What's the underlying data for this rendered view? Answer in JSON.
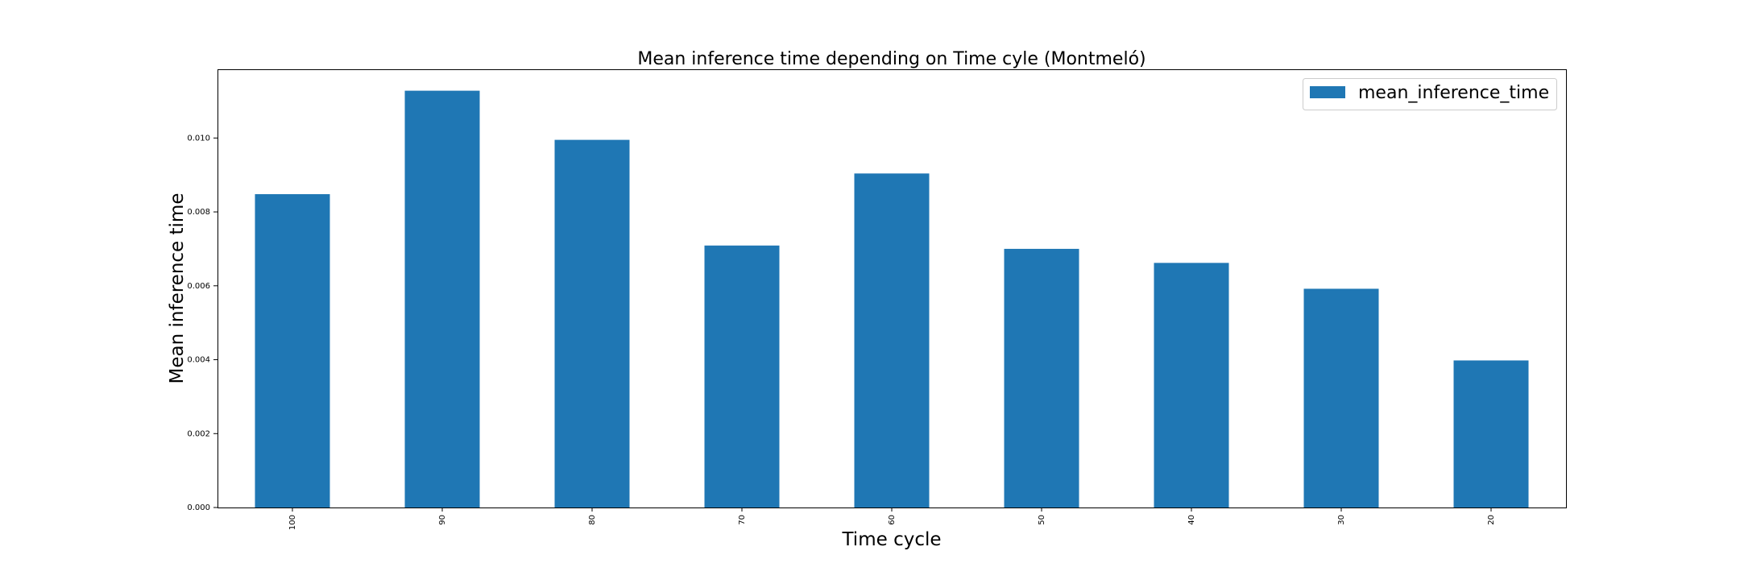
{
  "chart_data": {
    "type": "bar",
    "title": "Mean inference time depending on Time cyle (Montmeló)",
    "xlabel": "Time cycle",
    "ylabel": "Mean inference time",
    "categories": [
      "100",
      "90",
      "80",
      "70",
      "60",
      "50",
      "40",
      "30",
      "20"
    ],
    "series": [
      {
        "name": "mean_inference_time",
        "values": [
          0.00848,
          0.01128,
          0.00995,
          0.00709,
          0.00904,
          0.007,
          0.00662,
          0.00592,
          0.00398
        ],
        "color": "#1f77b4"
      }
    ],
    "ylim": [
      0,
      0.01186
    ],
    "yticks": [
      "0.000",
      "0.002",
      "0.004",
      "0.006",
      "0.008",
      "0.010"
    ],
    "grid": false,
    "legend_position": "top-right"
  }
}
